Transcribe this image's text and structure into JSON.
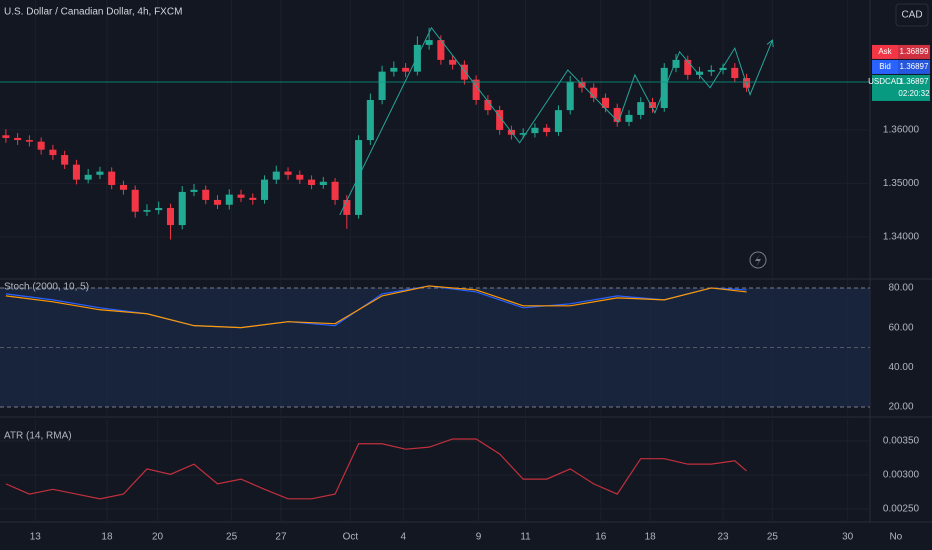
{
  "header": {
    "title": "U.S. Dollar / Canadian Dollar, 4h, FXCM",
    "currency": "CAD"
  },
  "chart_data": [
    {
      "type": "candlestick",
      "x": [
        0,
        1,
        2,
        3,
        4,
        5,
        6,
        7,
        8,
        9,
        10,
        11,
        12,
        13,
        14,
        15,
        16,
        17,
        18,
        19,
        20,
        21,
        22,
        23,
        24,
        25,
        26,
        27,
        28,
        29,
        30,
        31,
        32,
        33,
        34,
        35,
        36,
        37,
        38,
        39,
        40,
        41,
        42,
        43,
        44,
        45,
        46,
        47,
        48,
        49,
        50,
        51,
        52,
        53,
        54,
        55,
        56,
        57,
        58,
        59,
        60,
        61,
        62,
        63
      ],
      "open": [
        1.359,
        1.3585,
        1.3581,
        1.3578,
        1.3563,
        1.3553,
        1.3535,
        1.3507,
        1.3516,
        1.3522,
        1.3497,
        1.3488,
        1.3447,
        1.345,
        1.3454,
        1.3422,
        1.3484,
        1.3488,
        1.3469,
        1.346,
        1.3479,
        1.3473,
        1.3469,
        1.3507,
        1.3522,
        1.3516,
        1.3507,
        1.3497,
        1.3503,
        1.3469,
        1.3441,
        1.3581,
        1.3656,
        1.3709,
        1.3716,
        1.3709,
        1.3759,
        1.3768,
        1.3731,
        1.3722,
        1.3694,
        1.3656,
        1.3637,
        1.36,
        1.3591,
        1.3594,
        1.3604,
        1.3596,
        1.3637,
        1.369,
        1.3679,
        1.366,
        1.3641,
        1.3615,
        1.3628,
        1.3652,
        1.3641,
        1.3716,
        1.3731,
        1.3703,
        1.3709,
        1.3712,
        1.3716,
        1.3697
      ],
      "high": [
        1.3601,
        1.3594,
        1.359,
        1.3586,
        1.3572,
        1.3561,
        1.3544,
        1.3527,
        1.3531,
        1.353,
        1.3505,
        1.3496,
        1.3461,
        1.3466,
        1.3462,
        1.3495,
        1.3499,
        1.3496,
        1.3478,
        1.3489,
        1.3488,
        1.3481,
        1.3515,
        1.3533,
        1.353,
        1.3524,
        1.3515,
        1.3512,
        1.351,
        1.3478,
        1.359,
        1.3668,
        1.372,
        1.3728,
        1.3725,
        1.3775,
        1.3791,
        1.3777,
        1.374,
        1.373,
        1.3702,
        1.3665,
        1.3645,
        1.3608,
        1.3603,
        1.3612,
        1.3611,
        1.3646,
        1.3701,
        1.3698,
        1.3687,
        1.3668,
        1.3649,
        1.3637,
        1.3661,
        1.366,
        1.3725,
        1.3742,
        1.3739,
        1.3718,
        1.3721,
        1.3724,
        1.3725,
        1.3705
      ],
      "low": [
        1.3576,
        1.3572,
        1.3569,
        1.3554,
        1.3544,
        1.3527,
        1.3498,
        1.35,
        1.3508,
        1.3489,
        1.3479,
        1.3436,
        1.3439,
        1.3442,
        1.3395,
        1.3414,
        1.3476,
        1.3461,
        1.3452,
        1.3451,
        1.3465,
        1.346,
        1.3462,
        1.3499,
        1.3507,
        1.3499,
        1.3489,
        1.349,
        1.346,
        1.3415,
        1.3434,
        1.3572,
        1.3648,
        1.37,
        1.3699,
        1.3702,
        1.375,
        1.3722,
        1.3713,
        1.3685,
        1.3647,
        1.3628,
        1.3591,
        1.3582,
        1.3584,
        1.3586,
        1.3588,
        1.3589,
        1.3629,
        1.367,
        1.3652,
        1.3633,
        1.3606,
        1.3607,
        1.362,
        1.3632,
        1.3634,
        1.3708,
        1.3694,
        1.3695,
        1.3701,
        1.3704,
        1.3689,
        1.3671
      ],
      "close": [
        1.3585,
        1.3581,
        1.3578,
        1.3563,
        1.3553,
        1.3535,
        1.3507,
        1.3516,
        1.3522,
        1.3497,
        1.3488,
        1.3447,
        1.345,
        1.3454,
        1.3422,
        1.3484,
        1.3488,
        1.3469,
        1.346,
        1.3479,
        1.3473,
        1.3469,
        1.3507,
        1.3522,
        1.3516,
        1.3507,
        1.3497,
        1.3503,
        1.3469,
        1.3441,
        1.3581,
        1.3656,
        1.3709,
        1.3716,
        1.3709,
        1.3759,
        1.3768,
        1.3731,
        1.3722,
        1.3694,
        1.3656,
        1.3637,
        1.36,
        1.3591,
        1.3594,
        1.3604,
        1.3596,
        1.3637,
        1.369,
        1.3679,
        1.366,
        1.3641,
        1.3615,
        1.3628,
        1.3652,
        1.3641,
        1.3716,
        1.3731,
        1.3703,
        1.3709,
        1.3712,
        1.3716,
        1.3697,
        1.3679
      ],
      "up_color": "#22ab94",
      "down_color": "#f23645",
      "xlim": [
        -0.5,
        73.5
      ],
      "xticks": [
        {
          "value": 2.5,
          "label": "13"
        },
        {
          "value": 8.6,
          "label": "18"
        },
        {
          "value": 12.9,
          "label": "20"
        },
        {
          "value": 19.2,
          "label": "25"
        },
        {
          "value": 23.4,
          "label": "27"
        },
        {
          "value": 29.3,
          "label": "Oct"
        },
        {
          "value": 33.8,
          "label": "4"
        },
        {
          "value": 40.2,
          "label": "9"
        },
        {
          "value": 44.2,
          "label": "11"
        },
        {
          "value": 50.6,
          "label": "16"
        },
        {
          "value": 54.8,
          "label": "18"
        },
        {
          "value": 61.0,
          "label": "23"
        },
        {
          "value": 65.2,
          "label": "25"
        },
        {
          "value": 71.6,
          "label": "30"
        },
        {
          "value": 75.7,
          "label": "No"
        }
      ],
      "ylim": [
        1.3323,
        1.3843
      ],
      "yticks": [
        {
          "value": 1.34,
          "label": "1.34000"
        },
        {
          "value": 1.35,
          "label": "1.35000"
        },
        {
          "value": 1.36,
          "label": "1.36000"
        }
      ],
      "grid": true,
      "drawing": {
        "color": "#26a69a",
        "x": [
          28.4,
          36.2,
          43.7,
          47.8,
          52.1,
          53.5,
          55.2,
          57.3,
          59.9,
          62.0,
          63.3,
          65.2
        ],
        "values": [
          1.3441,
          1.3791,
          1.3576,
          1.3712,
          1.3615,
          1.3703,
          1.3632,
          1.3746,
          1.3679,
          1.3753,
          1.3666,
          1.3768
        ]
      },
      "price_tags": {
        "ask_label": "Ask",
        "ask": 1.36899,
        "bid_label": "Bid",
        "bid": 1.36897,
        "symbol": "USDCAD",
        "last": 1.36897,
        "countdown": "02:20:32"
      }
    },
    {
      "type": "line",
      "title": "Stoch (2000, 10, 5)",
      "x": [
        0,
        4,
        8,
        12,
        16,
        20,
        24,
        28,
        32,
        36,
        40,
        44,
        48,
        52,
        56,
        60,
        63
      ],
      "series": [
        {
          "color": "#2962ff",
          "values": [
            77,
            74,
            70,
            67,
            61,
            60,
            63,
            61,
            77,
            81,
            78,
            70,
            72,
            76,
            74,
            80,
            79
          ]
        },
        {
          "color": "#ff9800",
          "values": [
            76,
            73,
            69,
            67,
            61,
            60,
            63,
            62,
            76,
            81,
            79,
            71,
            71,
            75,
            74,
            80,
            78
          ]
        }
      ],
      "xlim": [
        -0.5,
        73.5
      ],
      "ylim": [
        16,
        84
      ],
      "yticks": [
        {
          "value": 80,
          "label": "80.00"
        },
        {
          "value": 60,
          "label": "60.00"
        },
        {
          "value": 40,
          "label": "40.00"
        },
        {
          "value": 20,
          "label": "20.00"
        }
      ],
      "band": [
        20,
        80
      ],
      "midline": 50
    },
    {
      "type": "line",
      "title": "ATR (14, RMA)",
      "x": [
        0,
        2,
        4,
        6,
        8,
        10,
        12,
        14,
        16,
        18,
        20,
        22,
        24,
        26,
        28,
        30,
        32,
        34,
        36,
        38,
        40,
        42,
        44,
        46,
        48,
        50,
        52,
        54,
        56,
        58,
        60,
        62,
        63
      ],
      "series": [
        {
          "color": "#c2303d",
          "values": [
            0.00287,
            0.00272,
            0.00279,
            0.00272,
            0.00265,
            0.00272,
            0.00309,
            0.00301,
            0.00316,
            0.00287,
            0.00294,
            0.00279,
            0.00265,
            0.00265,
            0.00272,
            0.00346,
            0.00346,
            0.00338,
            0.00341,
            0.00353,
            0.00353,
            0.00331,
            0.00294,
            0.00294,
            0.00309,
            0.00287,
            0.00272,
            0.00324,
            0.00324,
            0.00316,
            0.00316,
            0.00321,
            0.00306
          ]
        }
      ],
      "xlim": [
        -0.5,
        73.5
      ],
      "ylim": [
        0.002324,
        0.003824
      ],
      "yticks": [
        {
          "value": 0.0035,
          "label": "0.00350"
        },
        {
          "value": 0.003,
          "label": "0.00300"
        },
        {
          "value": 0.0025,
          "label": "0.00250"
        }
      ]
    }
  ]
}
